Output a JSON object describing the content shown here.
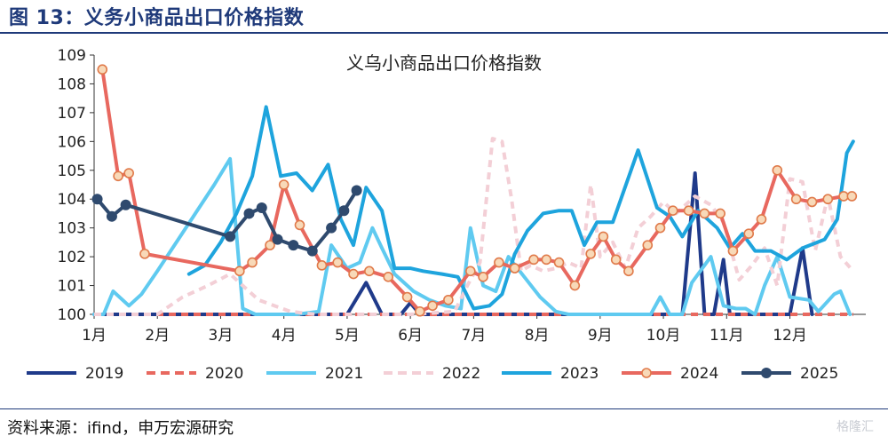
{
  "figure": {
    "title": "图 13：义务小商品出口价格指数",
    "source": "资料来源：ifind，申万宏源研究",
    "watermark": "格隆汇"
  },
  "chart_data": {
    "type": "line",
    "title": "义乌小商品出口价格指数",
    "xlabel": "",
    "ylabel": "",
    "ylim": [
      100,
      109
    ],
    "yticks": [
      "100",
      "101",
      "102",
      "103",
      "104",
      "105",
      "106",
      "107",
      "108",
      "109"
    ],
    "x_range": [
      1,
      13.2
    ],
    "xtick_labels": [
      "1月",
      "2月",
      "3月",
      "4月",
      "5月",
      "6月",
      "7月",
      "8月",
      "9月",
      "10月",
      "11月",
      "12月"
    ],
    "grid": false,
    "legend_position": "bottom",
    "series": [
      {
        "name": "2019",
        "color": "#1f3a8a",
        "dash": "solid",
        "marker": false,
        "points": [
          [
            1,
            100
          ],
          [
            5.0,
            100
          ],
          [
            5.3,
            101.1
          ],
          [
            5.55,
            100
          ],
          [
            5.85,
            100
          ],
          [
            6.0,
            100.4
          ],
          [
            6.15,
            100
          ],
          [
            10.3,
            100
          ],
          [
            10.5,
            104.9
          ],
          [
            10.65,
            100
          ],
          [
            10.8,
            100
          ],
          [
            10.95,
            101.9
          ],
          [
            11.05,
            100
          ],
          [
            12.0,
            100
          ],
          [
            12.2,
            102.3
          ],
          [
            12.35,
            100
          ]
        ]
      },
      {
        "name": "2020",
        "color": "#e8685f",
        "dash": "8,6",
        "marker": false,
        "points": [
          [
            1,
            100
          ],
          [
            13.0,
            100
          ]
        ]
      },
      {
        "name": "2021",
        "color": "#5fcaf0",
        "dash": "solid",
        "marker": false,
        "points": [
          [
            1,
            100
          ],
          [
            1.15,
            100
          ],
          [
            1.3,
            100.8
          ],
          [
            1.55,
            100.3
          ],
          [
            1.75,
            100.7
          ],
          [
            2.0,
            101.5
          ],
          [
            2.3,
            102.5
          ],
          [
            2.6,
            103.5
          ],
          [
            2.9,
            104.5
          ],
          [
            3.15,
            105.4
          ],
          [
            3.35,
            100.2
          ],
          [
            3.55,
            100
          ],
          [
            4.2,
            100
          ],
          [
            4.55,
            100.1
          ],
          [
            4.75,
            102.4
          ],
          [
            5.0,
            101.6
          ],
          [
            5.2,
            101.8
          ],
          [
            5.4,
            103.0
          ],
          [
            5.55,
            102.3
          ],
          [
            5.75,
            101.4
          ],
          [
            6.05,
            100.8
          ],
          [
            6.3,
            100.5
          ],
          [
            6.55,
            100.3
          ],
          [
            6.8,
            100.2
          ],
          [
            6.95,
            103.0
          ],
          [
            7.15,
            101.0
          ],
          [
            7.35,
            100.8
          ],
          [
            7.55,
            102.0
          ],
          [
            7.8,
            101.3
          ],
          [
            8.05,
            100.6
          ],
          [
            8.3,
            100.1
          ],
          [
            8.5,
            100
          ],
          [
            9.8,
            100
          ],
          [
            9.95,
            100.6
          ],
          [
            10.1,
            100
          ],
          [
            10.3,
            100
          ],
          [
            10.45,
            101.1
          ],
          [
            10.75,
            102.0
          ],
          [
            10.95,
            100.3
          ],
          [
            11.15,
            100.2
          ],
          [
            11.3,
            100.2
          ],
          [
            11.45,
            100
          ],
          [
            11.6,
            101.0
          ],
          [
            11.8,
            102.0
          ],
          [
            12.0,
            100.6
          ],
          [
            12.3,
            100.5
          ],
          [
            12.45,
            100.1
          ],
          [
            12.7,
            100.7
          ],
          [
            12.8,
            100.8
          ],
          [
            12.95,
            100
          ]
        ]
      },
      {
        "name": "2022",
        "color": "#f3cfd6",
        "dash": "8,6",
        "marker": false,
        "points": [
          [
            1,
            100
          ],
          [
            2.0,
            100
          ],
          [
            2.4,
            100.6
          ],
          [
            2.8,
            101.0
          ],
          [
            3.15,
            101.4
          ],
          [
            3.6,
            100.5
          ],
          [
            4.1,
            100.1
          ],
          [
            4.5,
            100
          ],
          [
            6.0,
            100
          ],
          [
            6.7,
            100.1
          ],
          [
            6.9,
            101.0
          ],
          [
            7.1,
            101.8
          ],
          [
            7.3,
            106.1
          ],
          [
            7.45,
            106.0
          ],
          [
            7.6,
            104.0
          ],
          [
            7.75,
            101.5
          ],
          [
            7.9,
            101.7
          ],
          [
            8.1,
            101.5
          ],
          [
            8.3,
            101.6
          ],
          [
            8.5,
            101.8
          ],
          [
            8.7,
            101.6
          ],
          [
            8.85,
            104.5
          ],
          [
            9.0,
            102.0
          ],
          [
            9.2,
            102.5
          ],
          [
            9.4,
            101.6
          ],
          [
            9.6,
            103.0
          ],
          [
            9.8,
            103.4
          ],
          [
            10.0,
            103.9
          ],
          [
            10.2,
            103.5
          ],
          [
            10.5,
            104.1
          ],
          [
            10.75,
            103.8
          ],
          [
            10.95,
            103.2
          ],
          [
            11.2,
            101.2
          ],
          [
            11.4,
            101.7
          ],
          [
            11.6,
            102.3
          ],
          [
            11.8,
            101.0
          ],
          [
            12.0,
            104.7
          ],
          [
            12.2,
            104.6
          ],
          [
            12.4,
            102.2
          ],
          [
            12.6,
            104.1
          ],
          [
            12.8,
            102.0
          ],
          [
            13.0,
            101.5
          ]
        ]
      },
      {
        "name": "2023",
        "color": "#1ea4dd",
        "dash": "solid",
        "marker": false,
        "points": [
          [
            2.5,
            101.4
          ],
          [
            2.75,
            101.7
          ],
          [
            3.0,
            102.5
          ],
          [
            3.25,
            103.5
          ],
          [
            3.5,
            104.8
          ],
          [
            3.72,
            107.2
          ],
          [
            3.95,
            104.8
          ],
          [
            4.2,
            104.9
          ],
          [
            4.45,
            104.3
          ],
          [
            4.7,
            105.2
          ],
          [
            4.9,
            103.3
          ],
          [
            5.1,
            102.4
          ],
          [
            5.3,
            104.4
          ],
          [
            5.55,
            103.6
          ],
          [
            5.75,
            101.6
          ],
          [
            6.0,
            101.6
          ],
          [
            6.2,
            101.5
          ],
          [
            6.5,
            101.4
          ],
          [
            6.75,
            101.3
          ],
          [
            7.0,
            100.2
          ],
          [
            7.25,
            100.3
          ],
          [
            7.45,
            100.7
          ],
          [
            7.65,
            102.1
          ],
          [
            7.85,
            102.9
          ],
          [
            8.1,
            103.5
          ],
          [
            8.35,
            103.6
          ],
          [
            8.55,
            103.6
          ],
          [
            8.75,
            102.4
          ],
          [
            8.95,
            103.2
          ],
          [
            9.2,
            103.2
          ],
          [
            9.6,
            105.7
          ],
          [
            9.9,
            103.7
          ],
          [
            10.1,
            103.4
          ],
          [
            10.3,
            102.7
          ],
          [
            10.55,
            103.6
          ],
          [
            10.85,
            103.0
          ],
          [
            11.05,
            102.3
          ],
          [
            11.25,
            102.8
          ],
          [
            11.45,
            102.2
          ],
          [
            11.7,
            102.2
          ],
          [
            11.95,
            101.9
          ],
          [
            12.2,
            102.3
          ],
          [
            12.55,
            102.6
          ],
          [
            12.75,
            103.3
          ],
          [
            12.9,
            105.6
          ],
          [
            13.0,
            106.0
          ]
        ]
      },
      {
        "name": "2024",
        "color": "#e8685f",
        "dash": "solid",
        "marker": true,
        "points": [
          [
            1.13,
            108.5
          ],
          [
            1.38,
            104.8
          ],
          [
            1.55,
            104.9
          ],
          [
            1.8,
            102.1
          ],
          [
            3.3,
            101.5
          ],
          [
            3.5,
            101.8
          ],
          [
            3.78,
            102.4
          ],
          [
            4.0,
            104.5
          ],
          [
            4.25,
            103.1
          ],
          [
            4.6,
            101.7
          ],
          [
            4.85,
            101.8
          ],
          [
            5.1,
            101.4
          ],
          [
            5.35,
            101.5
          ],
          [
            5.65,
            101.3
          ],
          [
            5.95,
            100.6
          ],
          [
            6.15,
            100.1
          ],
          [
            6.35,
            100.3
          ],
          [
            6.6,
            100.5
          ],
          [
            6.95,
            101.5
          ],
          [
            7.15,
            101.3
          ],
          [
            7.4,
            101.8
          ],
          [
            7.65,
            101.6
          ],
          [
            7.95,
            101.9
          ],
          [
            8.15,
            101.9
          ],
          [
            8.35,
            101.8
          ],
          [
            8.6,
            101.0
          ],
          [
            8.85,
            102.1
          ],
          [
            9.05,
            102.7
          ],
          [
            9.25,
            101.9
          ],
          [
            9.45,
            101.5
          ],
          [
            9.75,
            102.4
          ],
          [
            9.95,
            103.0
          ],
          [
            10.15,
            103.6
          ],
          [
            10.4,
            103.6
          ],
          [
            10.65,
            103.5
          ],
          [
            10.9,
            103.5
          ],
          [
            11.1,
            102.2
          ],
          [
            11.35,
            102.8
          ],
          [
            11.55,
            103.3
          ],
          [
            11.8,
            105.0
          ],
          [
            12.1,
            104.0
          ],
          [
            12.35,
            103.9
          ],
          [
            12.6,
            104.0
          ],
          [
            12.85,
            104.1
          ],
          [
            12.98,
            104.1
          ]
        ]
      },
      {
        "name": "2025",
        "color": "#2f4a6e",
        "dash": "solid",
        "marker": true,
        "points": [
          [
            1.05,
            104.0
          ],
          [
            1.28,
            103.4
          ],
          [
            1.5,
            103.8
          ],
          [
            3.15,
            102.7
          ],
          [
            3.45,
            103.5
          ],
          [
            3.65,
            103.7
          ],
          [
            3.9,
            102.6
          ],
          [
            4.15,
            102.4
          ],
          [
            4.45,
            102.2
          ],
          [
            4.75,
            103.0
          ],
          [
            4.95,
            103.6
          ],
          [
            5.15,
            104.3
          ]
        ]
      }
    ]
  }
}
